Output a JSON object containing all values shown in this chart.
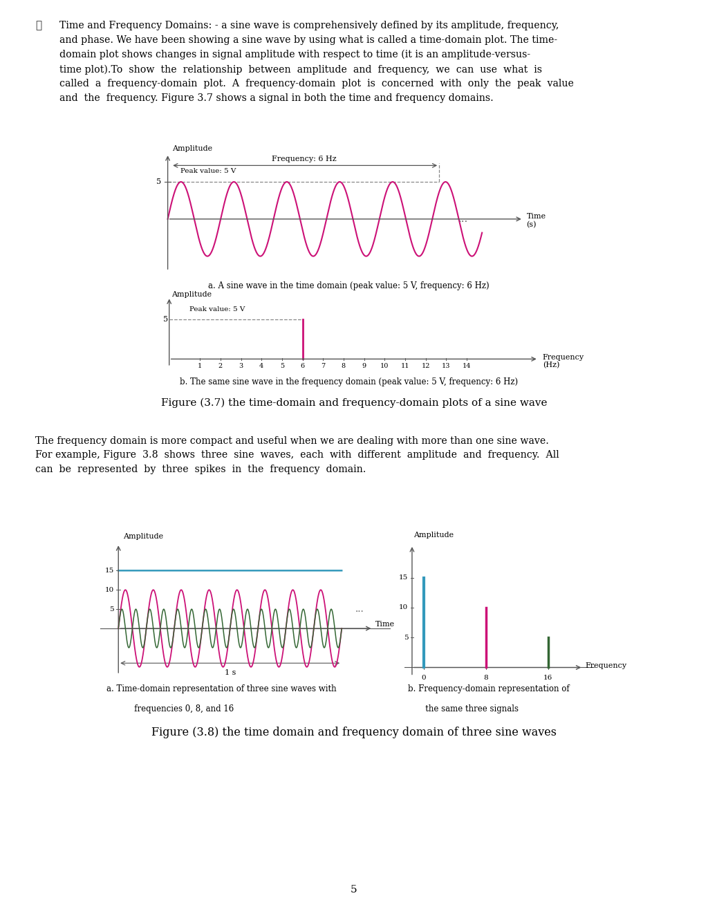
{
  "page_bg": "#ffffff",
  "text_color": "#000000",
  "sine_color": "#cc1177",
  "cyan_color": "#3399bb",
  "green_color": "#336633",
  "page_number": "5",
  "fig37_caption_a": "a. A sine wave in the time domain (peak value: 5 V, frequency: 6 Hz)",
  "fig37_caption_b": "b. The same sine wave in the frequency domain (peak value: 5 V, frequency: 6 Hz)",
  "fig37_title": "Figure (3.7) the time-domain and frequency-domain plots of a sine wave",
  "fig38_caption_a1": "a. Time-domain representation of three sine waves with",
  "fig38_caption_a2": "   frequencies 0, 8, and 16",
  "fig38_caption_b1": "b. Frequency-domain representation of",
  "fig38_caption_b2": "   the same three signals",
  "fig38_title": "Figure (3.8) the time domain and frequency domain of three sine waves"
}
